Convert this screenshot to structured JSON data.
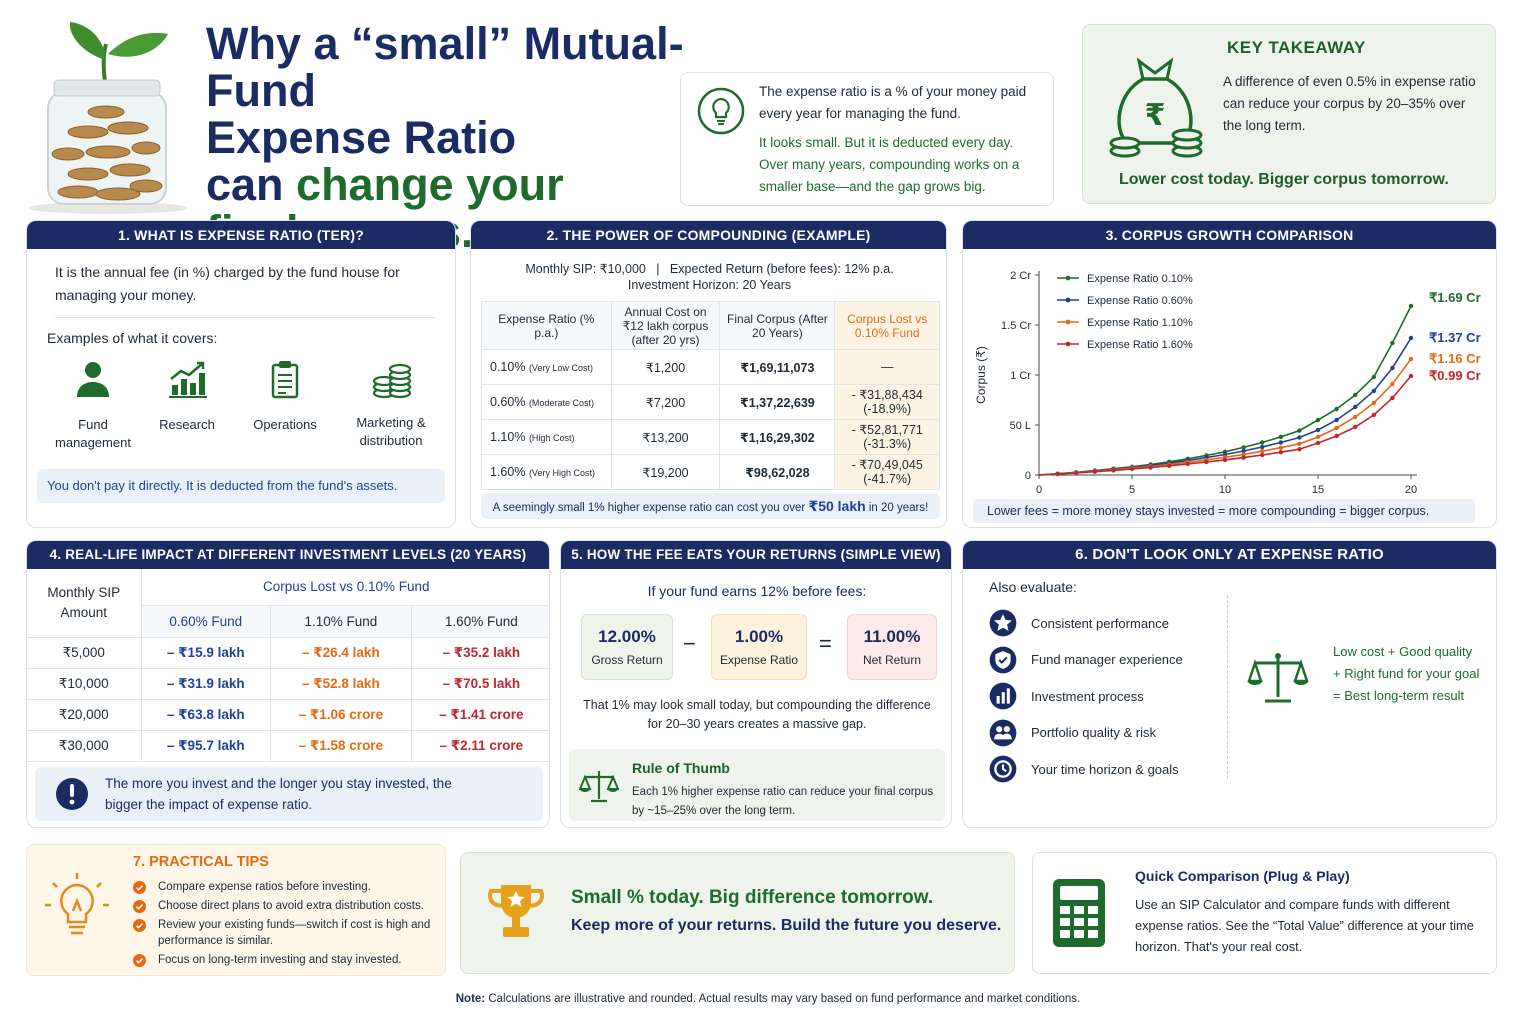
{
  "title": {
    "line1": "Why a “small” Mutual-Fund",
    "line2": "Expense Ratio",
    "line3a": "can ",
    "line3b": "change your",
    "line4": "final corpus."
  },
  "intro": {
    "p1": "The expense ratio is a % of your money paid every year for managing the fund.",
    "p2": "It looks small. But it is deducted every day. Over many years, compounding works on a smaller base—and the gap grows big."
  },
  "takeaway": {
    "title": "KEY TAKEAWAY",
    "text": "A difference of even 0.5% in expense ratio can reduce your corpus by 20–35% over the long term.",
    "tagline": "Lower cost today. Bigger corpus tomorrow."
  },
  "s1": {
    "header": "1. WHAT IS EXPENSE RATIO (TER)?",
    "def": "It is the annual fee (in %) charged by the fund house for managing your money.",
    "examples_label": "Examples of what it covers:",
    "items": [
      "Fund management",
      "Research",
      "Operations",
      "Marketing & distribution"
    ],
    "note": "You don't pay it directly. It is deducted from the fund's assets."
  },
  "s2": {
    "header": "2. THE POWER OF COMPOUNDING (EXAMPLE)",
    "assump1": "Monthly SIP: ₹10,000   |   Expected Return (before fees): 12% p.a.",
    "assump2": "Investment Horizon: 20 Years",
    "cols": [
      "Expense Ratio (% p.a.)",
      "Annual Cost on ₹12 lakh corpus (after 20 yrs)",
      "Final Corpus (After 20 Years)",
      "Corpus Lost vs 0.10% Fund"
    ],
    "rows": [
      {
        "ratio": "0.10%",
        "tag": "(Very Low Cost)",
        "cost": "₹1,200",
        "corpus": "₹1,69,11,073",
        "lost": "—",
        "pct": ""
      },
      {
        "ratio": "0.60%",
        "tag": "(Moderate Cost)",
        "cost": "₹7,200",
        "corpus": "₹1,37,22,639",
        "lost": "- ₹31,88,434",
        "pct": "(-18.9%)"
      },
      {
        "ratio": "1.10%",
        "tag": "(High Cost)",
        "cost": "₹13,200",
        "corpus": "₹1,16,29,302",
        "lost": "- ₹52,81,771",
        "pct": "(-31.3%)"
      },
      {
        "ratio": "1.60%",
        "tag": "(Very High Cost)",
        "cost": "₹19,200",
        "corpus": "₹98,62,028",
        "lost": "- ₹70,49,045",
        "pct": "(-41.7%)"
      }
    ],
    "foot_a": "A seemingly small 1% higher expense ratio can cost you over ",
    "foot_b": "₹50 lakh",
    "foot_c": " in 20 years!"
  },
  "s3": {
    "header": "3. CORPUS GROWTH COMPARISON",
    "note": "Lower fees = more money stays invested = more compounding = bigger corpus."
  },
  "chart_data": {
    "type": "line",
    "xlabel": "Years",
    "ylabel": "Corpus (₹)",
    "xlim": [
      0,
      20
    ],
    "ylim": [
      0,
      2
    ],
    "x_ticks": [
      "0",
      "5",
      "10",
      "15",
      "20"
    ],
    "y_ticks": [
      "0",
      "50 L",
      "1 Cr",
      "1.5 Cr",
      "2 Cr"
    ],
    "legend_position": "top-left",
    "x": [
      0,
      1,
      2,
      3,
      4,
      5,
      6,
      7,
      8,
      9,
      10,
      11,
      12,
      13,
      14,
      15,
      16,
      17,
      18,
      19,
      20
    ],
    "series": [
      {
        "name": "Expense Ratio 0.10%",
        "color": "#1f6b2d",
        "end_label": "₹1.69 Cr",
        "values": [
          0,
          0.013,
          0.027,
          0.044,
          0.063,
          0.082,
          0.105,
          0.132,
          0.162,
          0.196,
          0.232,
          0.276,
          0.325,
          0.381,
          0.444,
          0.55,
          0.66,
          0.8,
          0.98,
          1.32,
          1.69
        ]
      },
      {
        "name": "Expense Ratio 0.60%",
        "color": "#23409a",
        "end_label": "₹1.37 Cr",
        "values": [
          0,
          0.012,
          0.025,
          0.04,
          0.057,
          0.075,
          0.095,
          0.118,
          0.145,
          0.174,
          0.205,
          0.24,
          0.28,
          0.325,
          0.375,
          0.45,
          0.55,
          0.68,
          0.84,
          1.07,
          1.37
        ]
      },
      {
        "name": "Expense Ratio 1.10%",
        "color": "#e26b12",
        "end_label": "₹1.16 Cr",
        "values": [
          0,
          0.011,
          0.023,
          0.037,
          0.052,
          0.068,
          0.085,
          0.105,
          0.127,
          0.151,
          0.177,
          0.206,
          0.238,
          0.273,
          0.312,
          0.38,
          0.47,
          0.58,
          0.72,
          0.91,
          1.16
        ]
      },
      {
        "name": "Expense Ratio 1.60%",
        "color": "#c0262d",
        "end_label": "₹0.99 Cr",
        "values": [
          0,
          0.01,
          0.021,
          0.033,
          0.046,
          0.06,
          0.075,
          0.092,
          0.11,
          0.13,
          0.151,
          0.174,
          0.2,
          0.228,
          0.258,
          0.32,
          0.39,
          0.48,
          0.6,
          0.77,
          0.99
        ]
      }
    ]
  },
  "s4": {
    "header": "4. REAL-LIFE IMPACT AT DIFFERENT INVESTMENT LEVELS (20 YEARS)",
    "col0": "Monthly SIP Amount",
    "group": "Corpus Lost vs 0.10% Fund",
    "cols": [
      "0.60% Fund",
      "1.10% Fund",
      "1.60% Fund"
    ],
    "rows": [
      {
        "sip": "₹5,000",
        "a": "– ₹15.9 lakh",
        "b": "– ₹26.4 lakh",
        "c": "– ₹35.2 lakh"
      },
      {
        "sip": "₹10,000",
        "a": "– ₹31.9 lakh",
        "b": "– ₹52.8 lakh",
        "c": "– ₹70.5 lakh"
      },
      {
        "sip": "₹20,000",
        "a": "– ₹63.8 lakh",
        "b": "– ₹1.06 crore",
        "c": "– ₹1.41 crore"
      },
      {
        "sip": "₹30,000",
        "a": "– ₹95.7 lakh",
        "b": "– ₹1.58 crore",
        "c": "– ₹2.11 crore"
      }
    ],
    "note": "The more you invest and the longer you stay invested, the bigger the impact of expense ratio."
  },
  "s5": {
    "header": "5. HOW THE FEE EATS YOUR RETURNS (SIMPLE VIEW)",
    "lead": "If your fund earns 12% before fees:",
    "gross_val": "12.00%",
    "gross_lbl": "Gross Return",
    "minus": "−",
    "fee_val": "1.00%",
    "fee_lbl": "Expense Ratio",
    "eq": "=",
    "net_val": "11.00%",
    "net_lbl": "Net Return",
    "explain": "That 1% may look small today, but compounding the difference for 20–30 years creates a massive gap.",
    "rule_title": "Rule of Thumb",
    "rule_text": "Each 1% higher expense ratio can reduce your final corpus by ~15–25% over the long term."
  },
  "s6": {
    "header": "6. DON'T LOOK ONLY AT EXPENSE RATIO",
    "also": "Also evaluate:",
    "items": [
      "Consistent performance",
      "Fund manager experience",
      "Investment process",
      "Portfolio quality & risk",
      "Your time horizon & goals"
    ],
    "eq1": "Low cost + Good quality",
    "eq2": "+ Right fund for your goal",
    "eq3": "= Best long-term result"
  },
  "s7": {
    "header": "7. PRACTICAL TIPS",
    "tips": [
      "Compare expense ratios before investing.",
      "Choose direct plans to avoid extra distribution costs.",
      "Review your existing funds—switch if cost is high and performance is similar.",
      "Focus on long-term investing and stay invested."
    ]
  },
  "banner": {
    "line1": "Small % today. Big difference tomorrow.",
    "line2": "Keep more of your returns. Build the future you deserve."
  },
  "quick": {
    "title": "Quick Comparison (Plug & Play)",
    "text": "Use an SIP Calculator and compare funds with different expense ratios. See the “Total Value” difference at your time horizon. That's your real cost."
  },
  "footer": {
    "label": "Note:",
    "text": " Calculations are illustrative and rounded. Actual results may vary based on fund performance and market conditions."
  }
}
